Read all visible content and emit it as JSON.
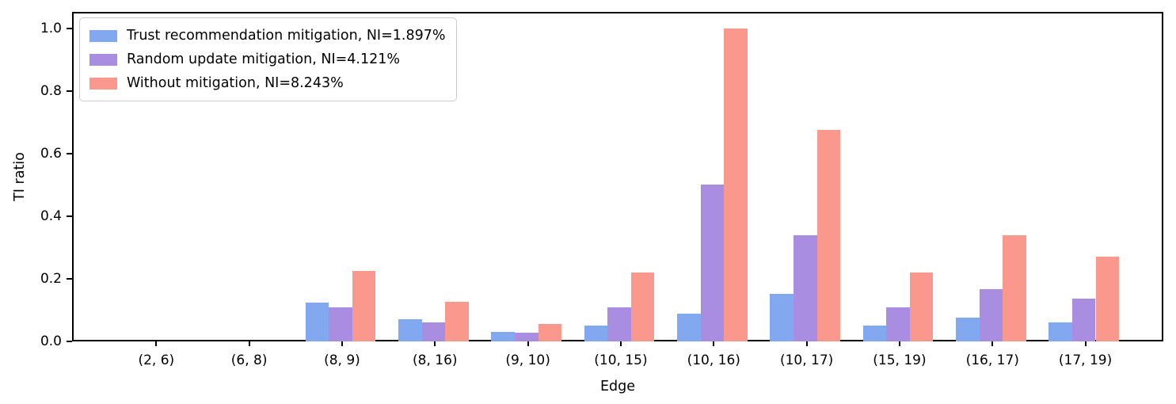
{
  "figure": {
    "background": "#ffffff",
    "spine_color": "#000000",
    "text_color": "#000000",
    "legend_border_color": "#cccccc"
  },
  "chart_data": {
    "type": "bar",
    "title": "",
    "xlabel": "Edge",
    "ylabel": "TI ratio",
    "categories": [
      "(2, 6)",
      "(6, 8)",
      "(8, 9)",
      "(8, 16)",
      "(9, 10)",
      "(10, 15)",
      "(10, 16)",
      "(10, 17)",
      "(15, 19)",
      "(16, 17)",
      "(17, 19)"
    ],
    "series": [
      {
        "name": "Trust recommendation mitigation, NI=1.897%",
        "color": "#82A9EF",
        "values": [
          0,
          0,
          0.125,
          0.071,
          0.031,
          0.051,
          0.089,
          0.152,
          0.051,
          0.075,
          0.062
        ]
      },
      {
        "name": "Random update mitigation, NI=4.121%",
        "color": "#A98DE1",
        "values": [
          0,
          0,
          0.11,
          0.06,
          0.028,
          0.11,
          0.502,
          0.339,
          0.11,
          0.168,
          0.136
        ]
      },
      {
        "name": "Without mitigation, NI=8.243%",
        "color": "#FB988E",
        "values": [
          0,
          0,
          0.225,
          0.126,
          0.055,
          0.22,
          1.0,
          0.677,
          0.22,
          0.338,
          0.272
        ]
      }
    ],
    "y_ticks": [
      0.0,
      0.2,
      0.4,
      0.6,
      0.8,
      1.0
    ],
    "ylim": [
      0,
      1.053
    ],
    "grid": false,
    "legend_position": "upper left"
  }
}
